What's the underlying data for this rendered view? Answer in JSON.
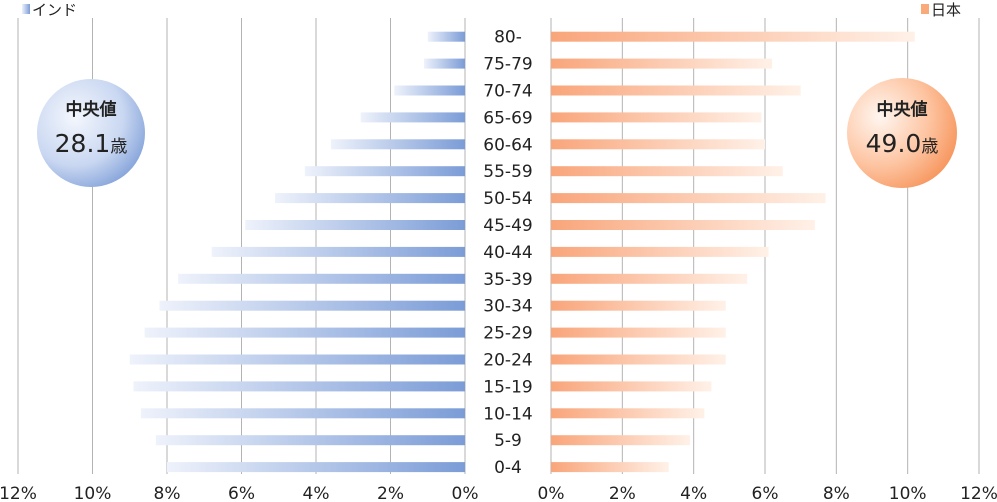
{
  "chart_data": {
    "type": "bar",
    "orientation": "horizontal",
    "layout": "population-pyramid",
    "categories": [
      "80-",
      "75-79",
      "70-74",
      "65-69",
      "60-64",
      "55-59",
      "50-54",
      "45-49",
      "40-44",
      "35-39",
      "30-34",
      "25-29",
      "20-24",
      "15-19",
      "10-14",
      "5-9",
      "0-4"
    ],
    "xlim": [
      0,
      12
    ],
    "x_ticks": [
      0,
      2,
      4,
      6,
      8,
      10,
      12
    ],
    "x_tick_suffix": "%",
    "grid": "vertical",
    "series": [
      {
        "name": "インド",
        "side": "left",
        "color": "#7f9fd8",
        "color_light": "#e8eef9",
        "values": [
          1.0,
          1.1,
          1.9,
          2.8,
          3.6,
          4.3,
          5.1,
          5.9,
          6.8,
          7.7,
          8.2,
          8.6,
          9.0,
          8.9,
          8.7,
          8.3,
          8.0
        ],
        "median_label": "中央値",
        "median_value": "28.1",
        "median_unit": "歳"
      },
      {
        "name": "日本",
        "side": "right",
        "color": "#f9a97a",
        "color_light": "#fde8da",
        "values": [
          10.2,
          6.2,
          7.0,
          5.9,
          6.0,
          6.5,
          7.7,
          7.4,
          6.1,
          5.5,
          4.9,
          4.9,
          4.9,
          4.5,
          4.3,
          3.9,
          3.3
        ],
        "median_label": "中央値",
        "median_value": "49.0",
        "median_unit": "歳"
      }
    ]
  }
}
